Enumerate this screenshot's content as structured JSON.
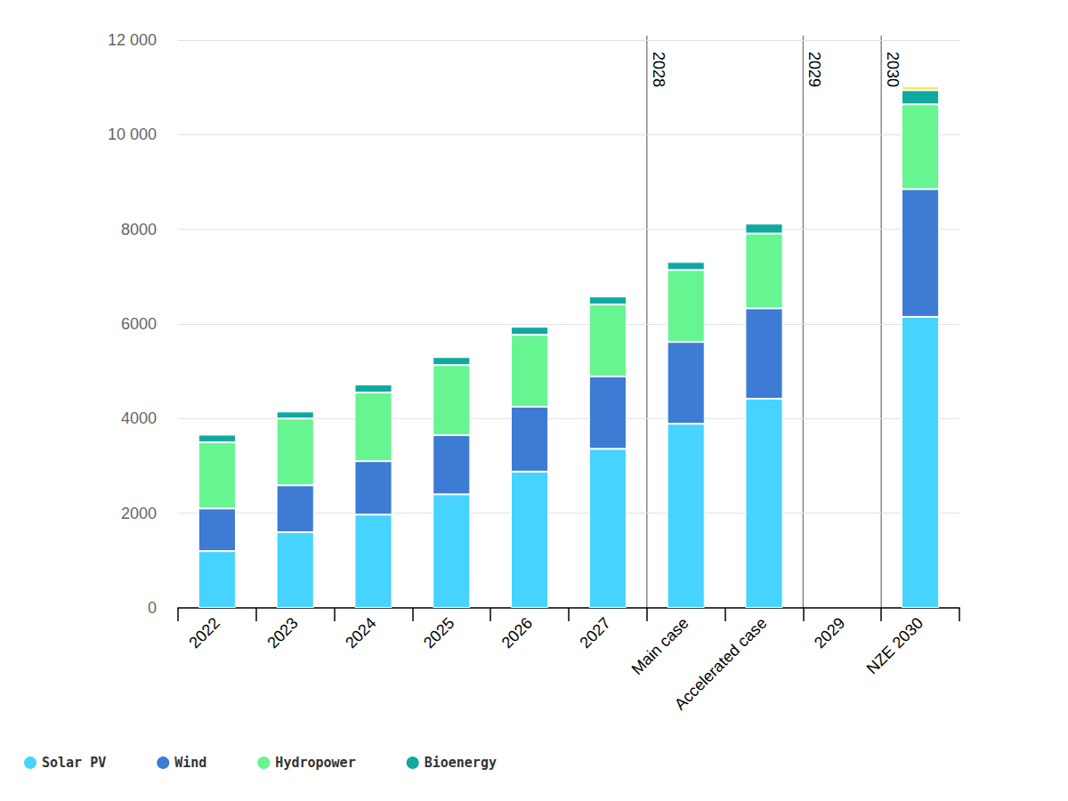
{
  "chart_data": {
    "type": "bar",
    "stacked": true,
    "categories": [
      "2022",
      "2023",
      "2024",
      "2025",
      "2026",
      "2027",
      "Main case",
      "Accelerated case",
      "2029",
      "NZE 2030"
    ],
    "series": [
      {
        "name": "Solar PV",
        "color": "#47d3ff",
        "values": [
          1200,
          1600,
          1970,
          2400,
          2880,
          3360,
          3890,
          4420,
          null,
          6150
        ]
      },
      {
        "name": "Wind",
        "color": "#3d7bd4",
        "values": [
          900,
          990,
          1130,
          1250,
          1370,
          1530,
          1730,
          1910,
          null,
          2700
        ]
      },
      {
        "name": "Hydropower",
        "color": "#66f591",
        "values": [
          1400,
          1410,
          1450,
          1480,
          1520,
          1520,
          1520,
          1580,
          null,
          1790
        ]
      },
      {
        "name": "Bioenergy",
        "color": "#10a9a0",
        "values": [
          160,
          150,
          170,
          170,
          170,
          170,
          170,
          210,
          null,
          300
        ]
      },
      {
        "color": "#f5e94a",
        "values": [
          null,
          null,
          null,
          null,
          null,
          null,
          null,
          null,
          null,
          80
        ]
      }
    ],
    "ylim": [
      0,
      12000
    ],
    "yticks": [
      0,
      2000,
      4000,
      6000,
      8000,
      {
        "value": 10000,
        "label": "10 000"
      },
      {
        "value": 12000,
        "label": "12 000"
      }
    ],
    "grid": true,
    "legend": "bottom-left",
    "annotations": [
      {
        "text": "2028",
        "between": [
          "2027",
          "Main case"
        ]
      },
      {
        "text": "2029",
        "between": [
          "Accelerated case",
          "2029"
        ]
      },
      {
        "text": "2030",
        "between": [
          "2029",
          "NZE 2030"
        ]
      }
    ]
  }
}
